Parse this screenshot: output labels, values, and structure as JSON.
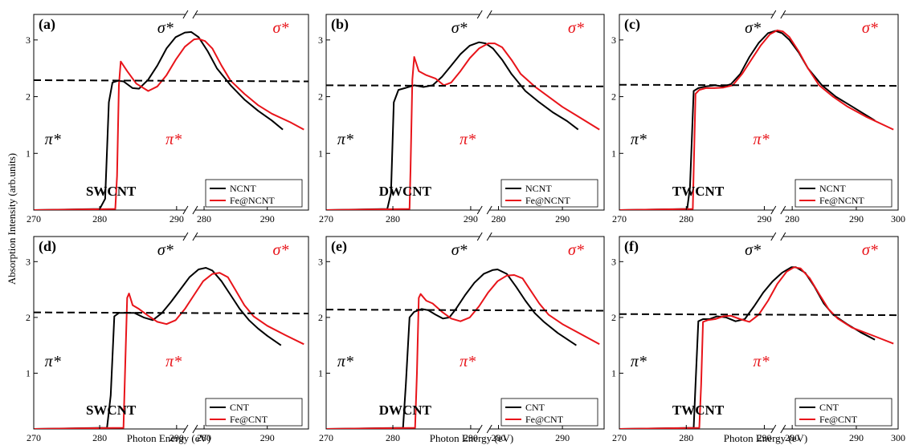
{
  "axis": {
    "ylabel": "Absorption Intensity (arb.units)",
    "xlabel": "Photon Energy (eV)"
  },
  "colors": {
    "pristine": "#000000",
    "doped": "#e8141a"
  },
  "chart_data": [
    {
      "type": "line",
      "panel_label": "(a)",
      "tube": "SWCNT",
      "xlim": [
        270,
        300
      ],
      "ylim": [
        0,
        3.45
      ],
      "x_ticks": [
        "270",
        "280",
        "290",
        "280",
        "290"
      ],
      "y_ticks": [
        1,
        2,
        3
      ],
      "annotations": {
        "sigma": "σ*",
        "pi": "π*"
      },
      "legend": [
        "NCNT",
        "Fe@NCNT"
      ],
      "legend_position": "bottom-right",
      "series": [
        {
          "name": "NCNT",
          "x": [
            270,
            277.2,
            277.8,
            278.2,
            278.6,
            279.2,
            279.8,
            280.8,
            281.5,
            282.5,
            283.5,
            284.5,
            285.5,
            286.5,
            287.2,
            288,
            289,
            290,
            291.5,
            293,
            294.5,
            296,
            297.2
          ],
          "y": [
            0,
            0.02,
            0.2,
            1.9,
            2.25,
            2.28,
            2.27,
            2.15,
            2.14,
            2.3,
            2.55,
            2.85,
            3.05,
            3.13,
            3.14,
            3.05,
            2.8,
            2.5,
            2.2,
            1.95,
            1.75,
            1.58,
            1.42
          ]
        },
        {
          "name": "Fe@NCNT",
          "x": [
            270,
            278.9,
            279.1,
            279.3,
            279.5,
            280.2,
            281.2,
            282.5,
            283.5,
            284.5,
            285.5,
            286.5,
            287.5,
            288,
            288.7,
            289.5,
            290.5,
            291.5,
            293,
            294.5,
            296,
            298,
            299.5
          ],
          "y": [
            0,
            0.02,
            0.6,
            2.2,
            2.62,
            2.45,
            2.23,
            2.1,
            2.18,
            2.38,
            2.65,
            2.88,
            3.01,
            3.02,
            2.98,
            2.85,
            2.55,
            2.28,
            2.05,
            1.85,
            1.7,
            1.55,
            1.42
          ]
        },
        {
          "name": "",
          "style": "dashed",
          "x": [
            270,
            300
          ],
          "y": [
            2.29,
            2.27
          ]
        }
      ]
    },
    {
      "type": "line",
      "panel_label": "(b)",
      "tube": "DWCNT",
      "xlim": [
        270,
        300
      ],
      "ylim": [
        0,
        3.45
      ],
      "x_ticks": [
        "270",
        "280",
        "290",
        "280",
        "290"
      ],
      "y_ticks": [
        1,
        2,
        3
      ],
      "annotations": {
        "sigma": "σ*",
        "pi": "π*"
      },
      "legend": [
        "NCNT",
        "Fe@NCNT"
      ],
      "legend_position": "bottom-right",
      "series": [
        {
          "name": "NCNT",
          "x": [
            270,
            276.6,
            277,
            277.3,
            277.8,
            278.5,
            279.5,
            280.5,
            281.5,
            282.5,
            283.5,
            284.5,
            285.5,
            286.5,
            287.2,
            288,
            289,
            290,
            291.5,
            293,
            294.5,
            296,
            297.2
          ],
          "y": [
            0,
            0.02,
            0.3,
            1.9,
            2.12,
            2.15,
            2.2,
            2.17,
            2.2,
            2.35,
            2.55,
            2.75,
            2.9,
            2.96,
            2.94,
            2.85,
            2.65,
            2.4,
            2.1,
            1.9,
            1.72,
            1.57,
            1.42
          ]
        },
        {
          "name": "Fe@NCNT",
          "x": [
            270,
            279,
            279.1,
            279.3,
            279.5,
            280,
            280.8,
            281.8,
            282.7,
            283.5,
            284.5,
            285.5,
            286.5,
            287.5,
            288.2,
            289,
            290,
            291,
            292.5,
            294,
            295.5,
            297,
            299.5
          ],
          "y": [
            0,
            0.02,
            0.7,
            2.3,
            2.7,
            2.45,
            2.38,
            2.32,
            2.2,
            2.25,
            2.45,
            2.68,
            2.85,
            2.94,
            2.94,
            2.87,
            2.65,
            2.4,
            2.18,
            2.0,
            1.82,
            1.67,
            1.42
          ]
        },
        {
          "name": "",
          "style": "dashed",
          "x": [
            270,
            300
          ],
          "y": [
            2.2,
            2.18
          ]
        }
      ]
    },
    {
      "type": "line",
      "panel_label": "(c)",
      "tube": "TWCNT",
      "xlim": [
        270,
        300
      ],
      "ylim": [
        0,
        3.45
      ],
      "x_ticks": [
        "270",
        "280",
        "290",
        "280",
        "290",
        "300"
      ],
      "y_ticks": [
        1,
        2,
        3
      ],
      "annotations": {
        "sigma": "σ*",
        "pi": "π*"
      },
      "legend": [
        "NCNT",
        "Fe@NCNT"
      ],
      "legend_position": "bottom-right",
      "series": [
        {
          "name": "NCNT",
          "x": [
            270,
            277.3,
            277.6,
            278,
            278.5,
            279.3,
            280.3,
            281.2,
            282,
            283,
            284,
            285,
            286,
            286.8,
            287.5,
            288.3,
            289.3,
            290.3,
            291.8,
            293.3,
            294.8,
            296.3,
            297.5
          ],
          "y": [
            0,
            0.02,
            0.4,
            2.1,
            2.15,
            2.18,
            2.2,
            2.18,
            2.22,
            2.4,
            2.7,
            2.95,
            3.12,
            3.16,
            3.12,
            3.0,
            2.78,
            2.5,
            2.2,
            2.0,
            1.85,
            1.7,
            1.58
          ]
        },
        {
          "name": "Fe@NCNT",
          "x": [
            270,
            277.9,
            278,
            278.2,
            278.6,
            279.3,
            280.2,
            281.2,
            282.2,
            283.2,
            284.2,
            285.2,
            286.2,
            287,
            287.6,
            288.3,
            289.3,
            290.3,
            291.5,
            293,
            294.5,
            296.5,
            299.5
          ],
          "y": [
            0,
            0.02,
            0.7,
            2.05,
            2.12,
            2.15,
            2.15,
            2.16,
            2.2,
            2.4,
            2.65,
            2.9,
            3.1,
            3.17,
            3.15,
            3.05,
            2.8,
            2.5,
            2.2,
            2.0,
            1.83,
            1.65,
            1.42
          ]
        },
        {
          "name": "",
          "style": "dashed",
          "x": [
            270,
            300
          ],
          "y": [
            2.21,
            2.19
          ]
        }
      ]
    },
    {
      "type": "line",
      "panel_label": "(d)",
      "tube": "SWCNT",
      "xlim": [
        270,
        300
      ],
      "ylim": [
        0,
        3.45
      ],
      "x_ticks": [
        "270",
        "280",
        "290",
        "280",
        "290"
      ],
      "y_ticks": [
        1,
        2,
        3
      ],
      "annotations": {
        "sigma": "σ*",
        "pi": "π*"
      },
      "legend": [
        "CNT",
        "Fe@CNT"
      ],
      "legend_position": "bottom-right",
      "series": [
        {
          "name": "CNT",
          "x": [
            270,
            278,
            278.4,
            278.8,
            279.3,
            280,
            281,
            282,
            283,
            284,
            285,
            286,
            287,
            288,
            288.8,
            289.5,
            290.5,
            291.5,
            292.5,
            293.5,
            294.5,
            295.5,
            297
          ],
          "y": [
            0,
            0.02,
            0.6,
            2.02,
            2.08,
            2.08,
            2.08,
            2.0,
            1.95,
            2.08,
            2.28,
            2.5,
            2.72,
            2.86,
            2.89,
            2.84,
            2.65,
            2.4,
            2.15,
            1.95,
            1.8,
            1.67,
            1.5
          ]
        },
        {
          "name": "Fe@CNT",
          "x": [
            270,
            279.8,
            280,
            280.2,
            280.4,
            280.8,
            281.5,
            282.5,
            283.5,
            284.5,
            285.5,
            286.5,
            287.5,
            288.5,
            289.5,
            290.3,
            291.2,
            292,
            293,
            294,
            295.5,
            297.5,
            299.5
          ],
          "y": [
            0,
            0.02,
            1.2,
            2.35,
            2.43,
            2.22,
            2.15,
            2.03,
            1.92,
            1.88,
            1.95,
            2.15,
            2.4,
            2.65,
            2.78,
            2.8,
            2.72,
            2.5,
            2.22,
            2.02,
            1.85,
            1.68,
            1.52
          ]
        },
        {
          "name": "",
          "style": "dashed",
          "x": [
            270,
            300
          ],
          "y": [
            2.09,
            2.07
          ]
        }
      ]
    },
    {
      "type": "line",
      "panel_label": "(e)",
      "tube": "DWCNT",
      "xlim": [
        270,
        300
      ],
      "ylim": [
        0,
        3.45
      ],
      "x_ticks": [
        "270",
        "280",
        "290",
        "280",
        "290"
      ],
      "y_ticks": [
        1,
        2,
        3
      ],
      "annotations": {
        "sigma": "σ*",
        "pi": "π*"
      },
      "legend": [
        "CNT",
        "Fe@CNT"
      ],
      "legend_position": "bottom-right",
      "series": [
        {
          "name": "CNT",
          "x": [
            270,
            278.3,
            278.6,
            279,
            279.5,
            280.3,
            281,
            281.8,
            282.6,
            283.3,
            284,
            285,
            286,
            287,
            288,
            288.5,
            289.5,
            290.5,
            291.5,
            292.5,
            293.5,
            295,
            297
          ],
          "y": [
            0,
            0.02,
            0.8,
            2.0,
            2.1,
            2.15,
            2.13,
            2.05,
            1.98,
            2.0,
            2.15,
            2.4,
            2.62,
            2.78,
            2.85,
            2.86,
            2.78,
            2.55,
            2.3,
            2.08,
            1.92,
            1.72,
            1.5
          ]
        },
        {
          "name": "Fe@CNT",
          "x": [
            270,
            279.6,
            279.8,
            280,
            280.2,
            280.8,
            281.5,
            282.5,
            283.5,
            284.5,
            285.5,
            286.5,
            287.5,
            288.5,
            289.5,
            290.3,
            291.2,
            292,
            293,
            294,
            295.5,
            297.5,
            299.5
          ],
          "y": [
            0,
            0.02,
            1.0,
            2.35,
            2.42,
            2.3,
            2.25,
            2.1,
            1.98,
            1.93,
            2.0,
            2.2,
            2.45,
            2.65,
            2.75,
            2.76,
            2.7,
            2.5,
            2.25,
            2.05,
            1.88,
            1.7,
            1.52
          ]
        },
        {
          "name": "",
          "style": "dashed",
          "x": [
            270,
            300
          ],
          "y": [
            2.14,
            2.12
          ]
        }
      ]
    },
    {
      "type": "line",
      "panel_label": "(f)",
      "tube": "TWCNT",
      "xlim": [
        270,
        300
      ],
      "ylim": [
        0,
        3.45
      ],
      "x_ticks": [
        "270",
        "280",
        "290",
        "280",
        "290",
        "300"
      ],
      "y_ticks": [
        1,
        2,
        3
      ],
      "annotations": {
        "sigma": "σ*",
        "pi": "π*"
      },
      "legend": [
        "CNT",
        "Fe@CNT"
      ],
      "legend_position": "bottom-right",
      "series": [
        {
          "name": "CNT",
          "x": [
            270,
            278,
            278.2,
            278.5,
            279,
            279.7,
            280.5,
            281.5,
            282.5,
            283.5,
            284.5,
            285.5,
            286.5,
            287.5,
            288.5,
            289,
            290,
            291,
            292,
            293,
            294.5,
            296,
            297.5
          ],
          "y": [
            0,
            0.02,
            0.8,
            1.93,
            1.97,
            1.97,
            2.02,
            2.0,
            1.93,
            1.97,
            2.2,
            2.45,
            2.65,
            2.8,
            2.9,
            2.9,
            2.8,
            2.55,
            2.25,
            2.05,
            1.88,
            1.73,
            1.6
          ]
        },
        {
          "name": "Fe@CNT",
          "x": [
            270,
            278.6,
            278.8,
            279,
            279.5,
            280.3,
            281.2,
            282,
            283,
            284,
            285,
            286,
            287,
            288,
            288.8,
            289.5,
            290.5,
            291.5,
            292.5,
            293.5,
            295,
            297.5,
            299.5
          ],
          "y": [
            0,
            0.02,
            0.8,
            1.92,
            1.95,
            1.97,
            2.02,
            2.03,
            1.97,
            1.92,
            2.05,
            2.3,
            2.6,
            2.82,
            2.9,
            2.88,
            2.7,
            2.42,
            2.15,
            1.98,
            1.82,
            1.66,
            1.53
          ]
        },
        {
          "name": "",
          "style": "dashed",
          "x": [
            270,
            300
          ],
          "y": [
            2.06,
            2.04
          ]
        }
      ]
    }
  ]
}
